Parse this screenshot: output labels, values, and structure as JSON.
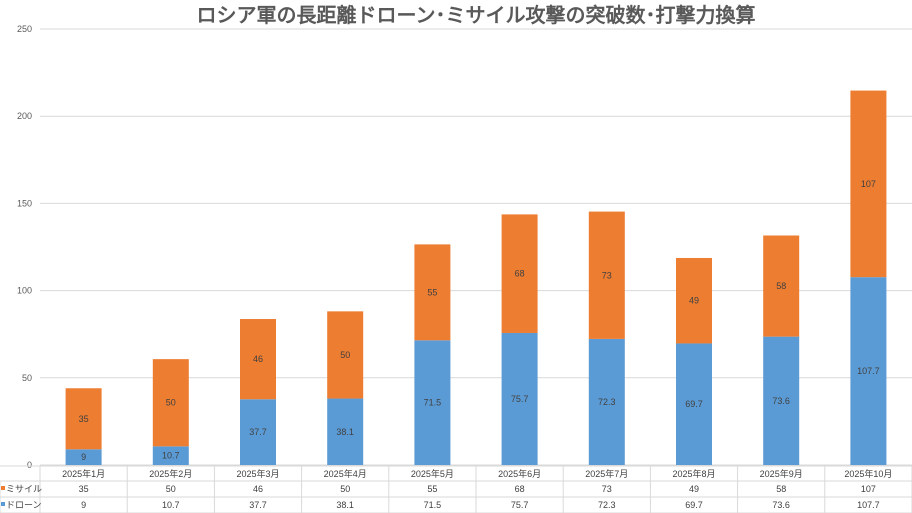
{
  "chart_data": {
    "type": "bar",
    "stacked": true,
    "title": "ロシア軍の長距離ドローン･ミサイル攻撃の突破数･打撃力換算",
    "xlabel": "",
    "ylabel": "",
    "ylim": [
      0,
      250
    ],
    "yticks": [
      0,
      50,
      100,
      150,
      200,
      250
    ],
    "grid": true,
    "legend": "data-table",
    "categories": [
      "2025年1月",
      "2025年2月",
      "2025年3月",
      "2025年4月",
      "2025年5月",
      "2025年6月",
      "2025年7月",
      "2025年8月",
      "2025年9月",
      "2025年10月"
    ],
    "series": [
      {
        "name": "ミサイル",
        "color": "#ED7D31",
        "values": [
          35,
          50,
          46,
          50,
          55,
          68,
          73,
          49,
          58,
          107
        ]
      },
      {
        "name": "ドローン",
        "color": "#5B9BD5",
        "values": [
          9,
          10.7,
          37.7,
          38.1,
          71.5,
          75.7,
          72.3,
          69.7,
          73.6,
          107.7
        ]
      }
    ]
  }
}
